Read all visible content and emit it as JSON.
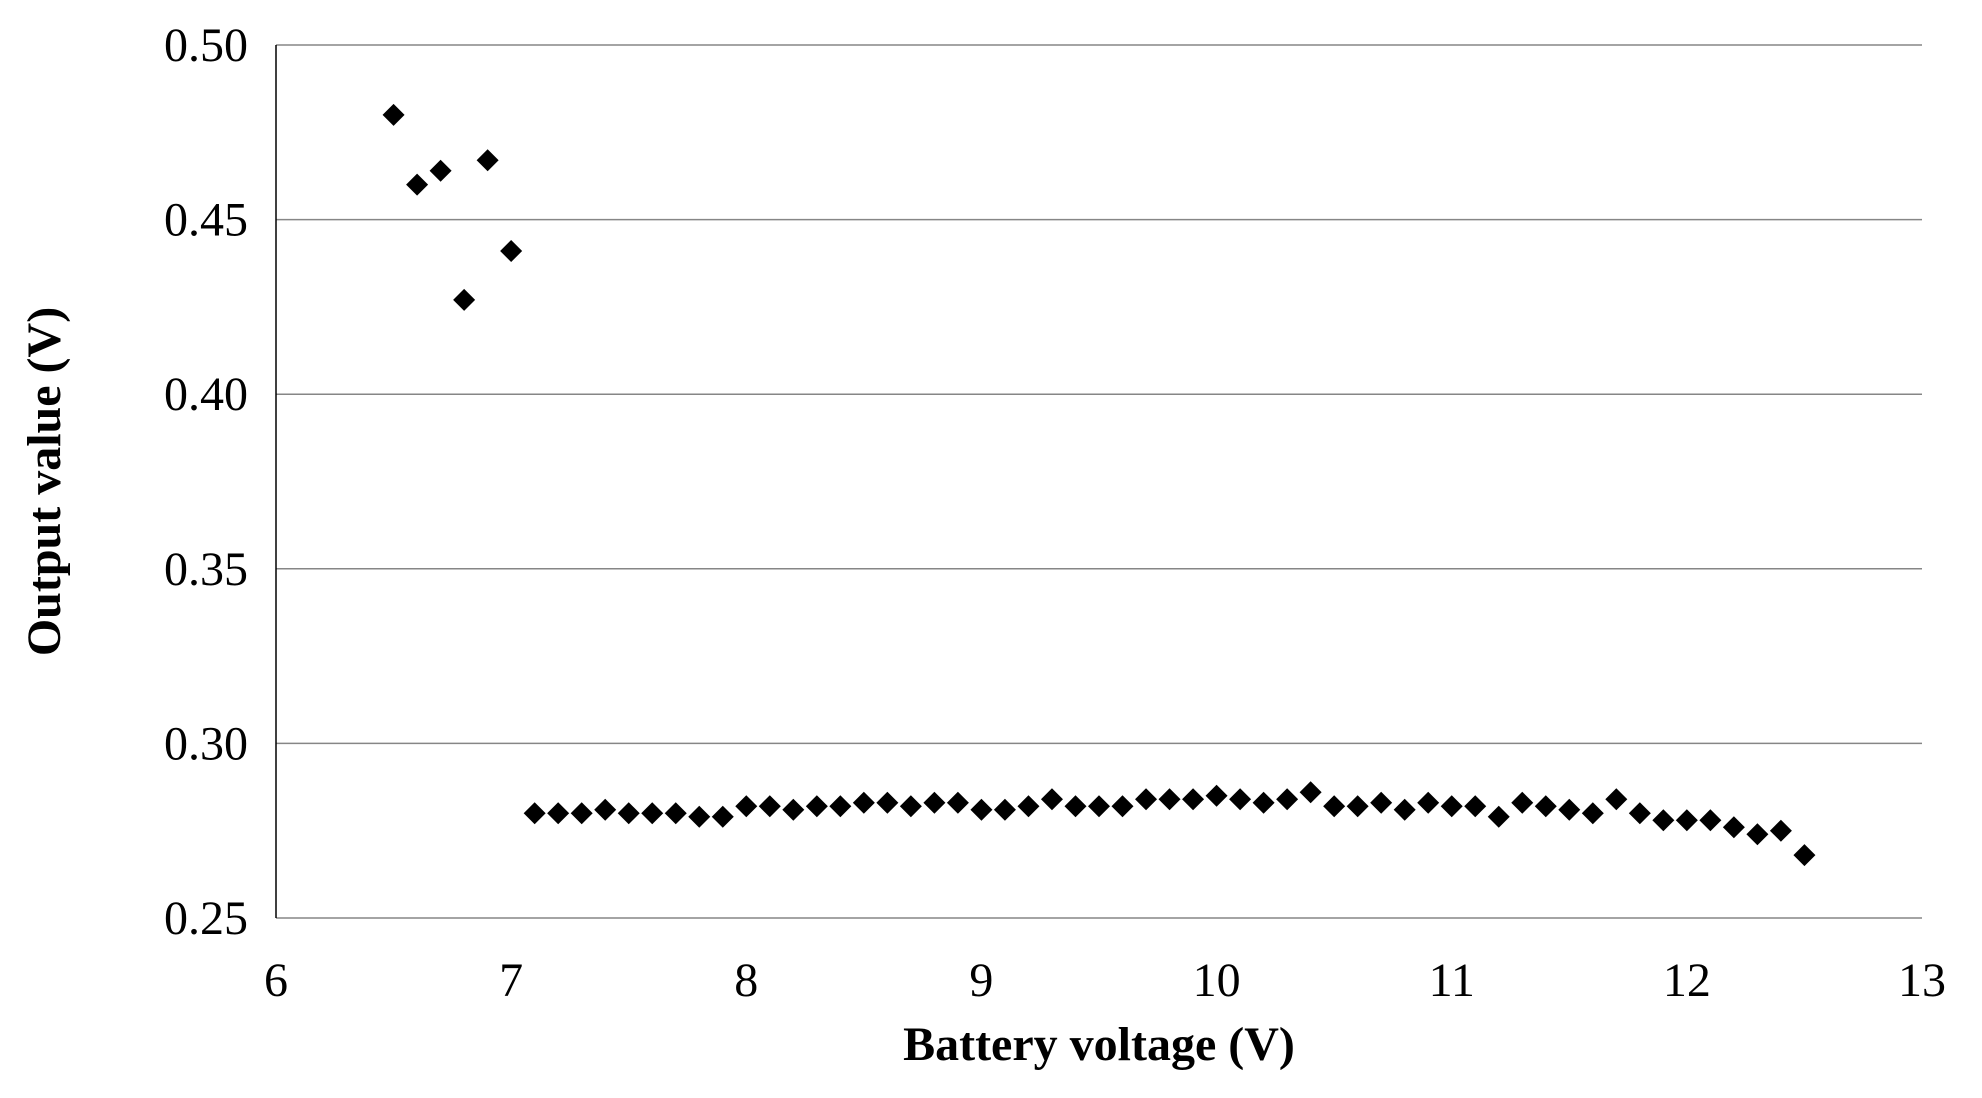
{
  "chart_data": {
    "type": "scatter",
    "title": "",
    "xlabel": "Battery voltage (V)",
    "ylabel": "Output value (V)",
    "xlim": [
      6,
      13
    ],
    "ylim": [
      0.25,
      0.5
    ],
    "grid": "horizontal",
    "x_ticks": [
      "6",
      "7",
      "8",
      "9",
      "10",
      "11",
      "12",
      "13"
    ],
    "y_ticks": [
      "0.25",
      "0.30",
      "0.35",
      "0.40",
      "0.45",
      "0.50"
    ],
    "marker": "diamond",
    "marker_color": "#000000",
    "series": [
      {
        "x": [
          6.5,
          6.6,
          6.7,
          6.8,
          6.9,
          7.0,
          7.1,
          7.2,
          7.3,
          7.4,
          7.5,
          7.6,
          7.7,
          7.8,
          7.9,
          8.0,
          8.1,
          8.2,
          8.3,
          8.4,
          8.5,
          8.6,
          8.7,
          8.8,
          8.9,
          9.0,
          9.1,
          9.2,
          9.3,
          9.4,
          9.5,
          9.6,
          9.7,
          9.8,
          9.9,
          10.0,
          10.1,
          10.2,
          10.3,
          10.4,
          10.5,
          10.6,
          10.7,
          10.8,
          10.9,
          11.0,
          11.1,
          11.2,
          11.3,
          11.4,
          11.5,
          11.6,
          11.7,
          11.8,
          11.9,
          12.0,
          12.1,
          12.2,
          12.3,
          12.4,
          12.5
        ],
        "y": [
          0.48,
          0.46,
          0.464,
          0.427,
          0.467,
          0.441,
          0.28,
          0.28,
          0.28,
          0.281,
          0.28,
          0.28,
          0.28,
          0.279,
          0.279,
          0.282,
          0.282,
          0.281,
          0.282,
          0.282,
          0.283,
          0.283,
          0.282,
          0.283,
          0.283,
          0.281,
          0.281,
          0.282,
          0.284,
          0.282,
          0.282,
          0.282,
          0.284,
          0.284,
          0.284,
          0.285,
          0.284,
          0.283,
          0.284,
          0.286,
          0.282,
          0.282,
          0.283,
          0.281,
          0.283,
          0.282,
          0.282,
          0.279,
          0.283,
          0.282,
          0.281,
          0.28,
          0.284,
          0.28,
          0.278,
          0.278,
          0.278,
          0.276,
          0.274,
          0.275,
          0.268
        ]
      }
    ]
  }
}
